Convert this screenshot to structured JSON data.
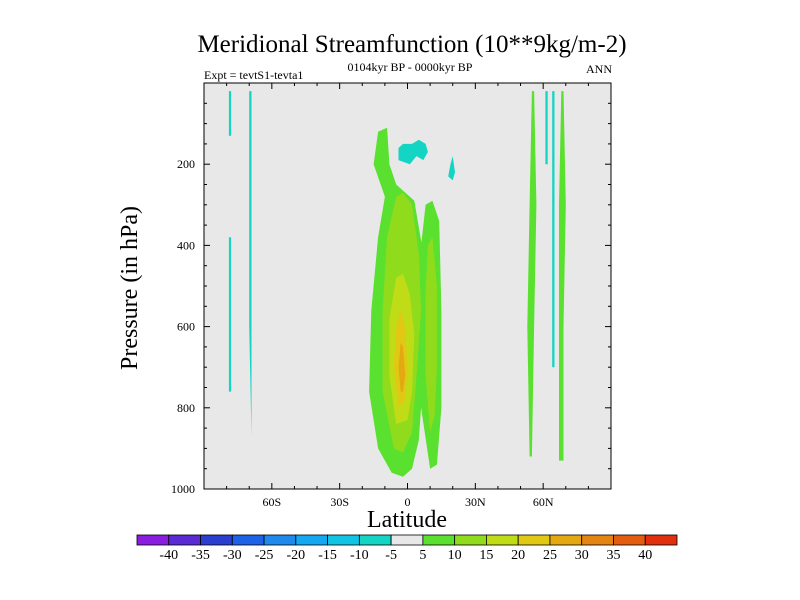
{
  "chart_data": {
    "type": "contour",
    "title": "Meridional Streamfunction (10**9kg/m-2)",
    "left_label": "Expt = tevtS1-tevta1",
    "center_label": "0104kyr BP - 0000kyr BP",
    "right_label": "ANN",
    "xlabel": "Latitude",
    "ylabel": "Pressure (in hPa)",
    "xlim": [
      -90,
      90
    ],
    "ylim": [
      1000,
      0
    ],
    "x_ticks": [
      {
        "value": -60,
        "label": "60S"
      },
      {
        "value": -30,
        "label": "30S"
      },
      {
        "value": 0,
        "label": "0"
      },
      {
        "value": 30,
        "label": "30N"
      },
      {
        "value": 60,
        "label": "60N"
      }
    ],
    "y_ticks": [
      {
        "value": 200,
        "label": "200"
      },
      {
        "value": 400,
        "label": "400"
      },
      {
        "value": 600,
        "label": "600"
      },
      {
        "value": 800,
        "label": "800"
      },
      {
        "value": 1000,
        "label": "1000"
      }
    ],
    "levels": [
      -40,
      -35,
      -30,
      -25,
      -20,
      -15,
      -10,
      -5,
      5,
      10,
      15,
      20,
      25,
      30,
      35,
      40
    ],
    "colors": [
      "#8a1ee0",
      "#5a2ad4",
      "#2a3ed0",
      "#1e62e8",
      "#1e8aee",
      "#14a8f0",
      "#12c4e4",
      "#14d4c4",
      "#e8e8e8",
      "#5ae02e",
      "#90dc1c",
      "#c0dc16",
      "#e0c814",
      "#e4a812",
      "#e48412",
      "#e45c10",
      "#e03010"
    ],
    "features": [
      {
        "name": "cell-nh-outer",
        "bin": 9,
        "points": [
          [
            -7,
            960
          ],
          [
            -13,
            900
          ],
          [
            -17,
            760
          ],
          [
            -16,
            560
          ],
          [
            -13,
            380
          ],
          [
            -10,
            280
          ],
          [
            -15,
            200
          ],
          [
            -13,
            120
          ],
          [
            -9,
            110
          ],
          [
            -8,
            200
          ],
          [
            -5,
            250
          ],
          [
            3,
            290
          ],
          [
            7,
            420
          ],
          [
            9,
            560
          ],
          [
            7,
            720
          ],
          [
            5,
            880
          ],
          [
            2,
            950
          ],
          [
            -2,
            970
          ]
        ]
      },
      {
        "name": "cell-nh-light",
        "bin": 10,
        "points": [
          [
            -6,
            900
          ],
          [
            -11,
            760
          ],
          [
            -11,
            560
          ],
          [
            -9,
            380
          ],
          [
            -5,
            280
          ],
          [
            -2,
            270
          ],
          [
            2,
            300
          ],
          [
            5,
            420
          ],
          [
            6,
            560
          ],
          [
            4,
            720
          ],
          [
            2,
            860
          ],
          [
            -2,
            910
          ]
        ]
      },
      {
        "name": "cell-nh-yellow",
        "bin": 11,
        "points": [
          [
            -5,
            840
          ],
          [
            -8,
            720
          ],
          [
            -8,
            580
          ],
          [
            -5,
            480
          ],
          [
            -2,
            470
          ],
          [
            1,
            520
          ],
          [
            3,
            620
          ],
          [
            2,
            760
          ],
          [
            0,
            830
          ]
        ]
      },
      {
        "name": "cell-nh-gold",
        "bin": 12,
        "points": [
          [
            -4,
            800
          ],
          [
            -6,
            700
          ],
          [
            -5,
            600
          ],
          [
            -3,
            560
          ],
          [
            -1,
            600
          ],
          [
            0,
            700
          ],
          [
            -1,
            780
          ]
        ]
      },
      {
        "name": "cell-nh-core",
        "bin": 13,
        "points": [
          [
            -3,
            760
          ],
          [
            -4,
            700
          ],
          [
            -3,
            640
          ],
          [
            -2,
            650
          ],
          [
            -1,
            720
          ],
          [
            -2,
            760
          ]
        ]
      },
      {
        "name": "cell-sh-outer",
        "bin": 9,
        "points": [
          [
            10,
            950
          ],
          [
            6,
            800
          ],
          [
            5,
            560
          ],
          [
            6,
            400
          ],
          [
            8,
            300
          ],
          [
            11,
            290
          ],
          [
            14,
            340
          ],
          [
            15,
            560
          ],
          [
            15,
            800
          ],
          [
            13,
            940
          ]
        ]
      },
      {
        "name": "cell-sh-light",
        "bin": 10,
        "points": [
          [
            10,
            860
          ],
          [
            8,
            720
          ],
          [
            8,
            520
          ],
          [
            9,
            400
          ],
          [
            11,
            380
          ],
          [
            13,
            500
          ],
          [
            13,
            700
          ],
          [
            12,
            820
          ]
        ]
      },
      {
        "name": "strip-nh-a",
        "bin": 9,
        "points": [
          [
            54,
            920
          ],
          [
            53,
            600
          ],
          [
            54,
            300
          ],
          [
            55,
            20
          ],
          [
            56,
            20
          ],
          [
            57,
            300
          ],
          [
            56,
            600
          ],
          [
            55,
            920
          ]
        ]
      },
      {
        "name": "strip-nh-b",
        "bin": 9,
        "points": [
          [
            67,
            930
          ],
          [
            67,
            600
          ],
          [
            67,
            300
          ],
          [
            68,
            20
          ],
          [
            69,
            20
          ],
          [
            70,
            300
          ],
          [
            69,
            600
          ],
          [
            69,
            930
          ]
        ]
      },
      {
        "name": "strip-nh-c",
        "bin": 7,
        "points": [
          [
            64,
            20
          ],
          [
            64,
            400
          ],
          [
            64,
            700
          ],
          [
            65,
            700
          ],
          [
            65,
            400
          ],
          [
            65,
            20
          ]
        ]
      },
      {
        "name": "strip-nh-d",
        "bin": 7,
        "points": [
          [
            61,
            20
          ],
          [
            61,
            200
          ],
          [
            62,
            200
          ],
          [
            62,
            20
          ]
        ]
      },
      {
        "name": "strip-sh-a",
        "bin": 7,
        "points": [
          [
            -69,
            870
          ],
          [
            -70,
            600
          ],
          [
            -70,
            300
          ],
          [
            -70,
            20
          ],
          [
            -69,
            20
          ],
          [
            -69,
            300
          ],
          [
            -69,
            600
          ]
        ]
      },
      {
        "name": "strip-sh-b",
        "bin": 7,
        "points": [
          [
            -79,
            760
          ],
          [
            -79,
            550
          ],
          [
            -79,
            380
          ],
          [
            -78,
            380
          ],
          [
            -78,
            550
          ],
          [
            -78,
            760
          ]
        ]
      },
      {
        "name": "strip-sh-c",
        "bin": 7,
        "points": [
          [
            -79,
            20
          ],
          [
            -79,
            130
          ],
          [
            -78,
            130
          ],
          [
            -78,
            20
          ]
        ]
      },
      {
        "name": "blob-upper-a",
        "bin": 7,
        "points": [
          [
            -4,
            190
          ],
          [
            -4,
            160
          ],
          [
            -2,
            150
          ],
          [
            2,
            150
          ],
          [
            5,
            140
          ],
          [
            8,
            150
          ],
          [
            9,
            170
          ],
          [
            7,
            190
          ],
          [
            4,
            180
          ],
          [
            1,
            200
          ]
        ]
      },
      {
        "name": "blob-upper-b",
        "bin": 7,
        "points": [
          [
            18,
            230
          ],
          [
            19,
            200
          ],
          [
            20,
            180
          ],
          [
            21,
            220
          ],
          [
            20,
            240
          ]
        ]
      }
    ]
  }
}
